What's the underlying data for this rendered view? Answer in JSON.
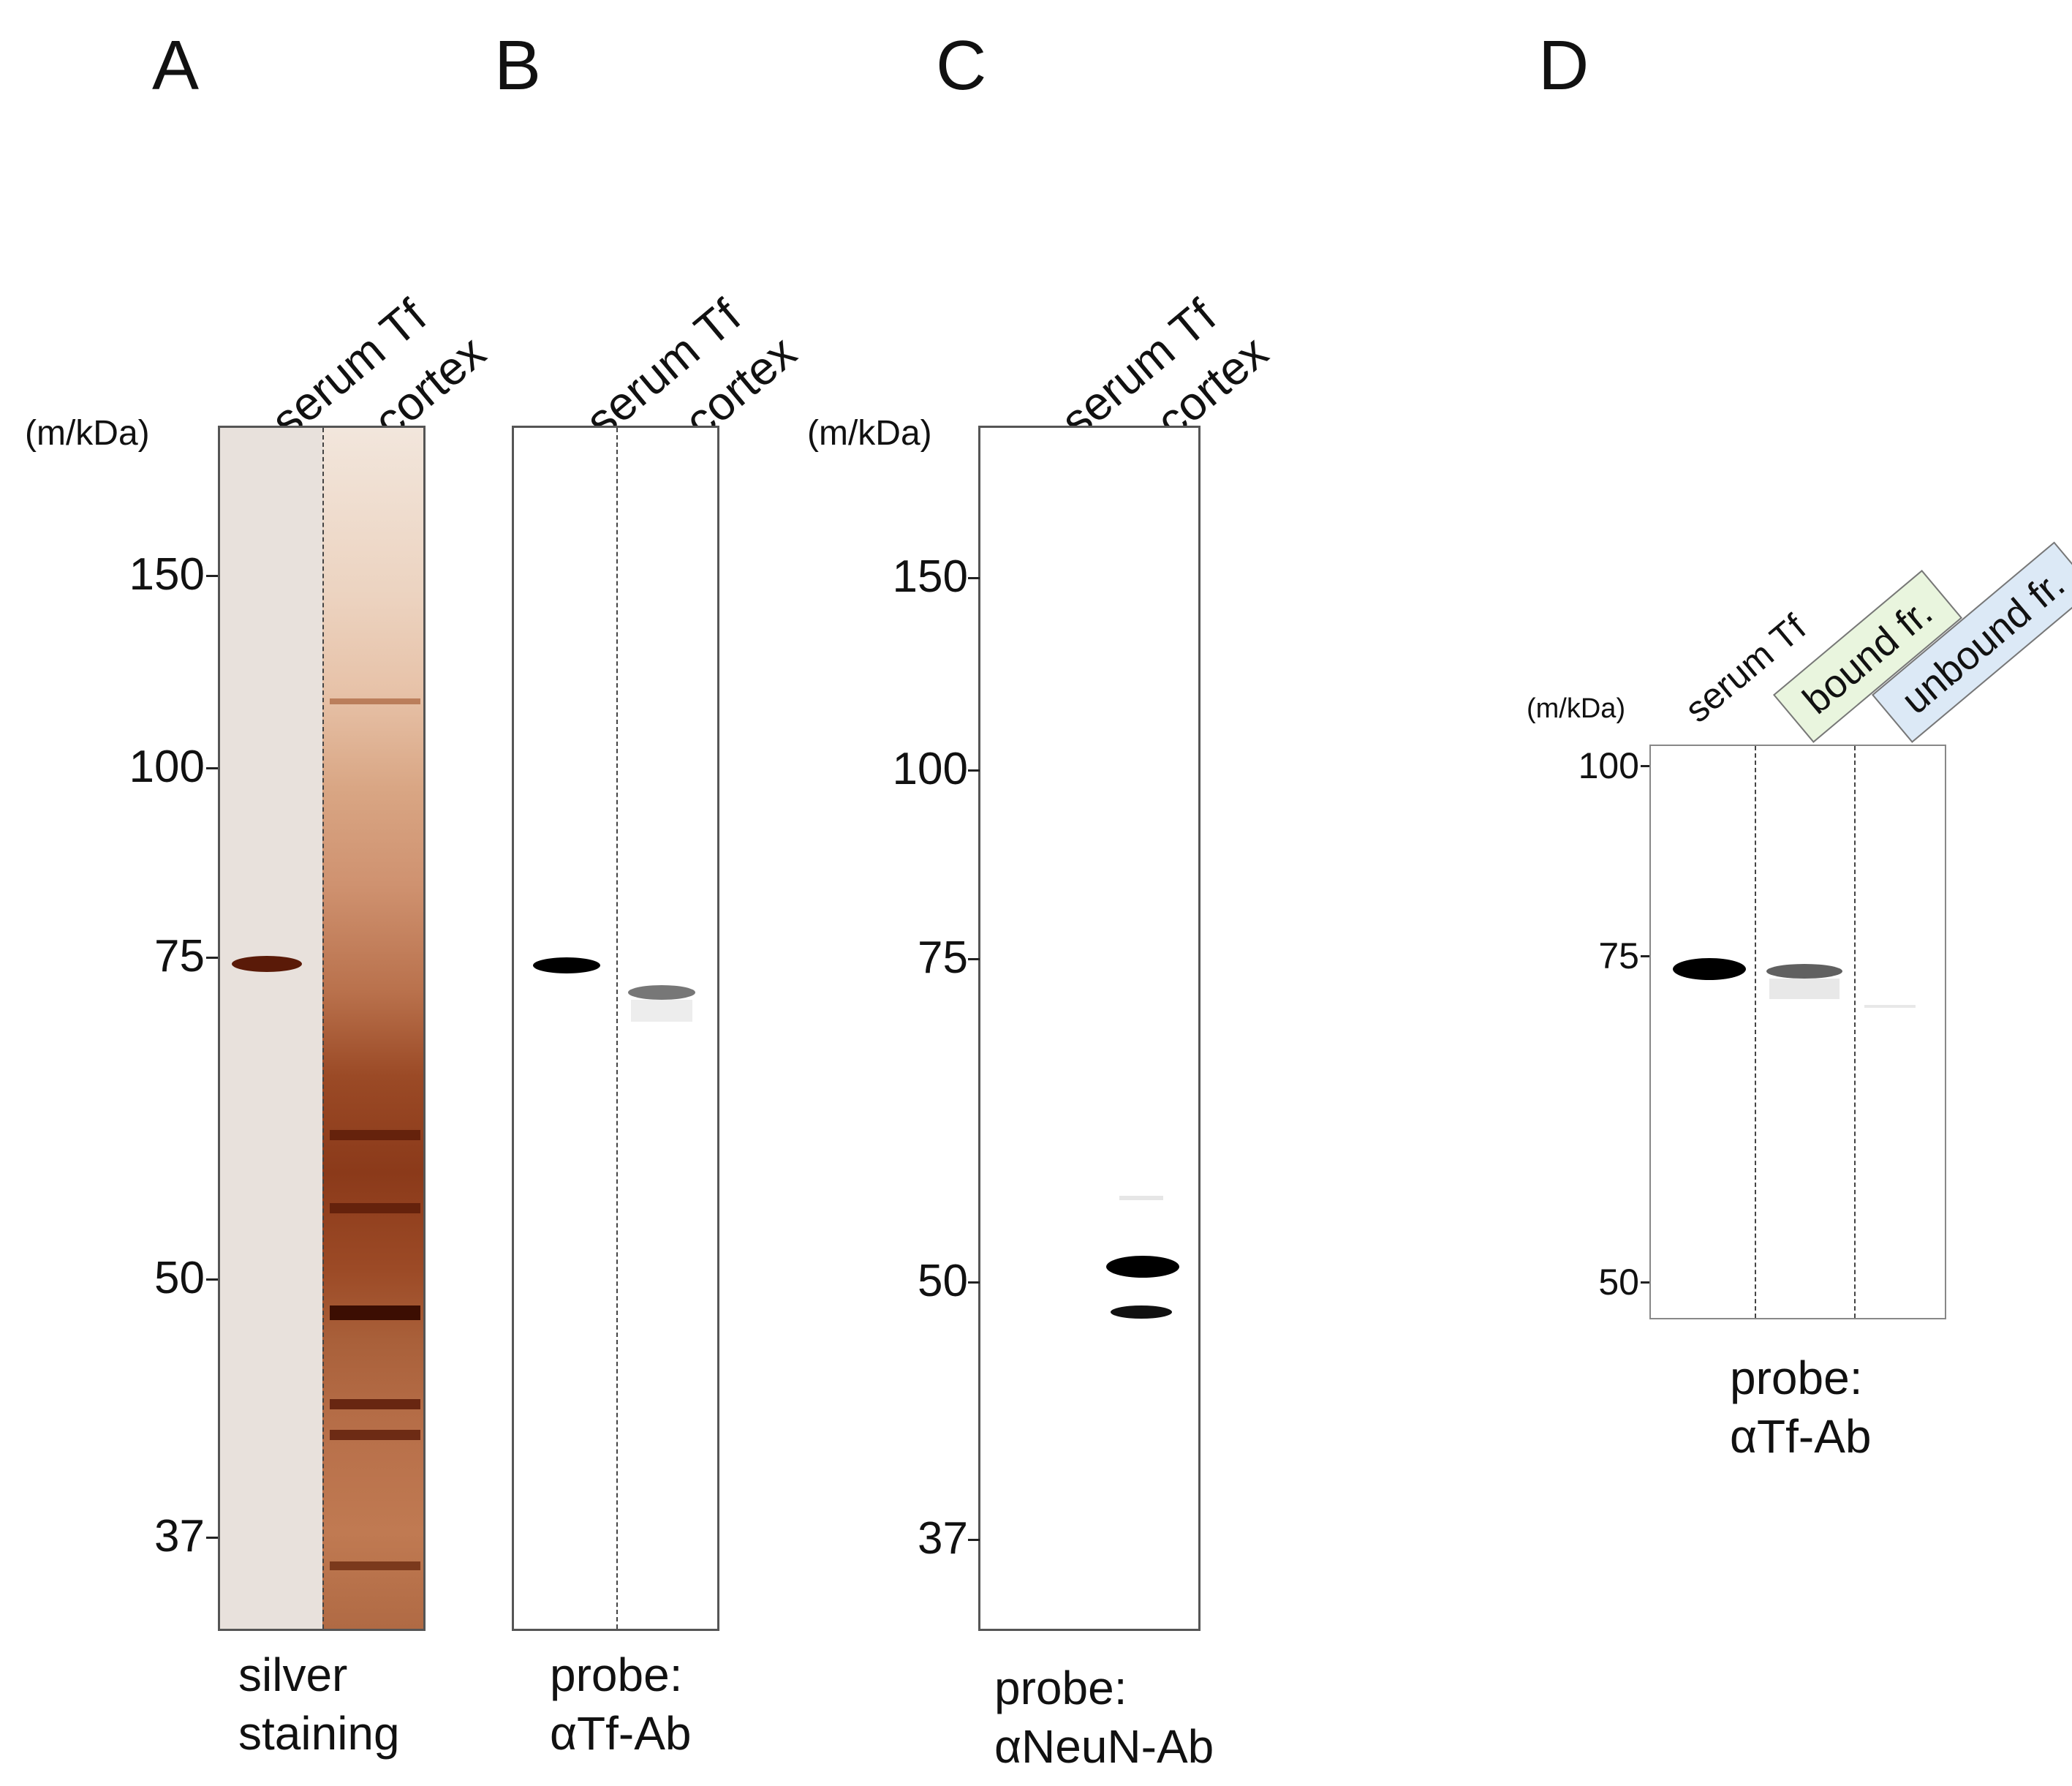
{
  "panels": {
    "A": {
      "letter": "A",
      "lanes": [
        "serum Tf",
        "cortex"
      ],
      "unit_label": "(m/kDa)",
      "markers": [
        "150",
        "100",
        "75",
        "50",
        "37"
      ],
      "caption": [
        "silver",
        "staining"
      ]
    },
    "B": {
      "letter": "B",
      "lanes": [
        "serum Tf",
        "cortex"
      ],
      "caption": [
        "probe:",
        "αTf-Ab"
      ]
    },
    "C": {
      "letter": "C",
      "lanes": [
        "serum Tf",
        "cortex"
      ],
      "unit_label": "(m/kDa)",
      "markers": [
        "150",
        "100",
        "75",
        "50",
        "37"
      ],
      "caption": [
        "probe:",
        "αNeuN-Ab"
      ]
    },
    "D": {
      "letter": "D",
      "lanes": [
        "serum Tf",
        "bound fr.",
        "unbound fr."
      ],
      "unit_label": "(m/kDa)",
      "markers": [
        "100",
        "75",
        "50"
      ],
      "caption": [
        "probe:",
        "αTf-Ab"
      ]
    }
  },
  "colors": {
    "silver_gel": "#e8e1dc",
    "silver_band": "#5a1a08",
    "cortex_lane": "#c98a62",
    "western_band": "#000000",
    "bound_box": "#e9f5de",
    "unbound_box": "#dce9f6"
  }
}
